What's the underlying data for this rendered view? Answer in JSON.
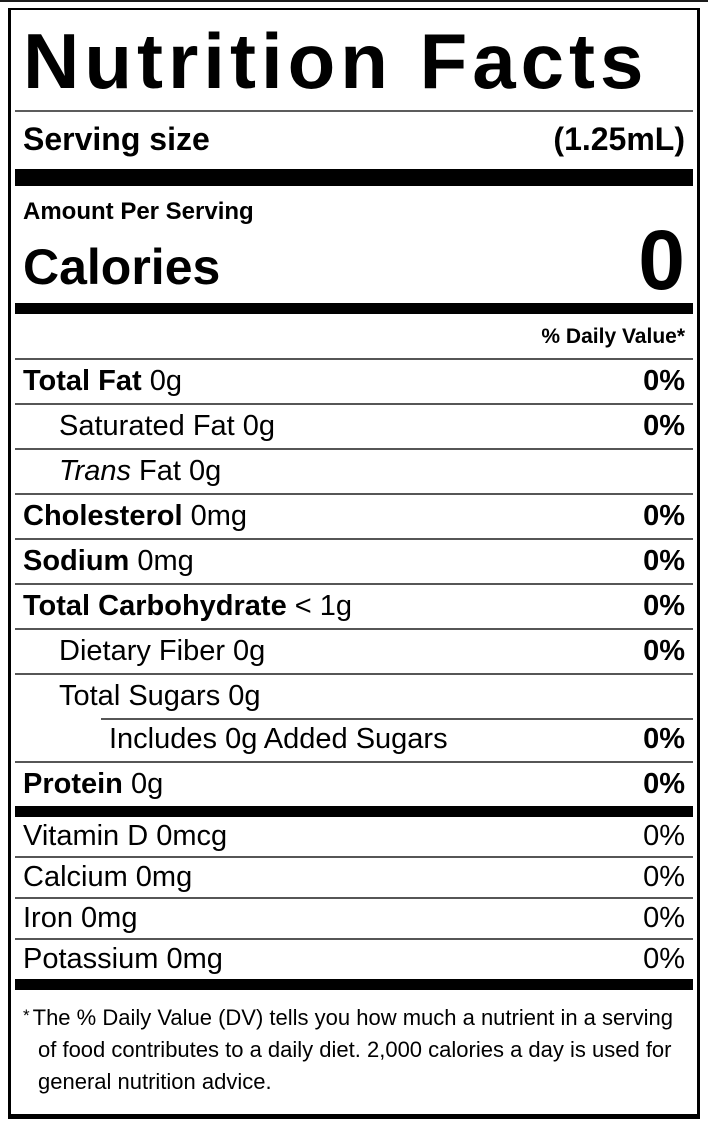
{
  "colors": {
    "text": "#000000",
    "bars": "#000000",
    "hairline": "#565656",
    "background": "#ffffff"
  },
  "label": {
    "title": "Nutrition Facts",
    "serving_size": {
      "label": "Serving size",
      "value": "(1.25mL)"
    },
    "amount_per_serving": "Amount Per Serving",
    "calories": {
      "label": "Calories",
      "value": "0"
    },
    "daily_value_header": "% Daily Value*",
    "nutrients": [
      {
        "key": "total-fat",
        "label": "Total Fat",
        "value": "0g",
        "dv": "0%",
        "bold": true,
        "indent": 0,
        "dv_bold": true
      },
      {
        "key": "saturated-fat",
        "label": "Saturated Fat",
        "value": "0g",
        "dv": "0%",
        "bold": false,
        "indent": 1,
        "dv_bold": true
      },
      {
        "key": "trans-fat",
        "label_italic": "Trans",
        "label": "Fat",
        "value": "0g",
        "dv": "",
        "bold": false,
        "indent": 1,
        "dv_bold": false
      },
      {
        "key": "cholesterol",
        "label": "Cholesterol",
        "value": "0mg",
        "dv": "0%",
        "bold": true,
        "indent": 0,
        "dv_bold": true
      },
      {
        "key": "sodium",
        "label": "Sodium",
        "value": "0mg",
        "dv": "0%",
        "bold": true,
        "indent": 0,
        "dv_bold": true
      },
      {
        "key": "total-carbohydrate",
        "label": "Total Carbohydrate",
        "value": "< 1g",
        "dv": "0%",
        "bold": true,
        "indent": 0,
        "dv_bold": true
      },
      {
        "key": "dietary-fiber",
        "label": "Dietary Fiber",
        "value": "0g",
        "dv": "0%",
        "bold": false,
        "indent": 1,
        "dv_bold": true
      },
      {
        "key": "total-sugars",
        "label": "Total Sugars",
        "value": "0g",
        "dv": "",
        "bold": false,
        "indent": 1,
        "dv_bold": false
      },
      {
        "key": "added-sugars",
        "label": "Includes 0g Added Sugars",
        "value": "",
        "dv": "0%",
        "bold": false,
        "indent": 2,
        "dv_bold": true,
        "partial_divider": true
      },
      {
        "key": "protein",
        "label": "Protein",
        "value": "0g",
        "dv": "0%",
        "bold": true,
        "indent": 0,
        "dv_bold": true
      }
    ],
    "vitamins": [
      {
        "key": "vitamin-d",
        "label": "Vitamin D",
        "value": "0mcg",
        "dv": "0%"
      },
      {
        "key": "calcium",
        "label": "Calcium",
        "value": "0mg",
        "dv": "0%"
      },
      {
        "key": "iron",
        "label": "Iron",
        "value": "0mg",
        "dv": "0%"
      },
      {
        "key": "potassium",
        "label": "Potassium",
        "value": "0mg",
        "dv": "0%"
      }
    ],
    "footnote": {
      "marker": "*",
      "text": "The % Daily Value (DV) tells you how much a nutrient in a serving of food contributes to a daily diet. 2,000 calories a day is used for general nutrition advice."
    }
  }
}
